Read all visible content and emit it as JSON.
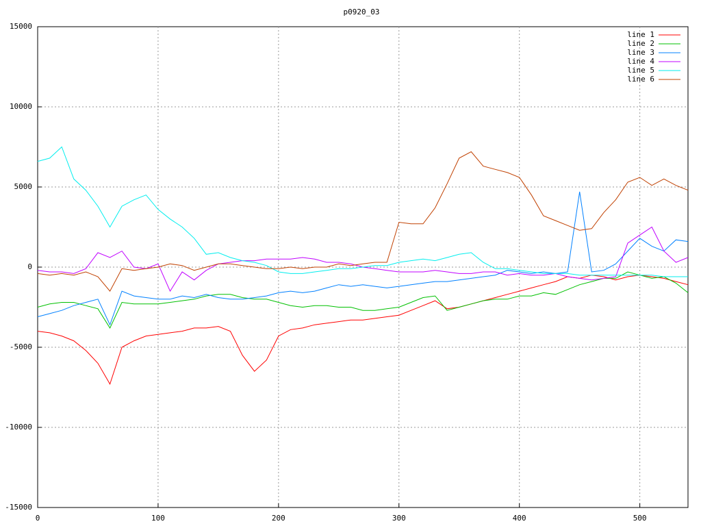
{
  "chart_data": {
    "type": "line",
    "title": "p0920_03",
    "x": [
      0,
      10,
      20,
      30,
      40,
      50,
      60,
      70,
      80,
      90,
      100,
      110,
      120,
      130,
      140,
      150,
      160,
      170,
      180,
      190,
      200,
      210,
      220,
      230,
      240,
      250,
      260,
      270,
      280,
      290,
      300,
      310,
      320,
      330,
      340,
      350,
      360,
      370,
      380,
      390,
      400,
      410,
      420,
      430,
      440,
      450,
      460,
      470,
      480,
      490,
      500,
      510,
      520,
      530,
      540
    ],
    "series": [
      {
        "name": "line 1",
        "color": "#ff0000",
        "values": [
          -4000,
          -4100,
          -4300,
          -4600,
          -5200,
          -6000,
          -7300,
          -5000,
          -4600,
          -4300,
          -4200,
          -4100,
          -4000,
          -3800,
          -3800,
          -3700,
          -4000,
          -5500,
          -6500,
          -5800,
          -4300,
          -3900,
          -3800,
          -3600,
          -3500,
          -3400,
          -3300,
          -3300,
          -3200,
          -3100,
          -3000,
          -2700,
          -2400,
          -2100,
          -2600,
          -2500,
          -2300,
          -2100,
          -1900,
          -1700,
          -1500,
          -1300,
          -1100,
          -900,
          -600,
          -700,
          -500,
          -600,
          -800,
          -600,
          -500,
          -600,
          -700,
          -900,
          -1100
        ]
      },
      {
        "name": "line 2",
        "color": "#00c000",
        "values": [
          -2500,
          -2300,
          -2200,
          -2200,
          -2400,
          -2600,
          -3800,
          -2200,
          -2300,
          -2300,
          -2300,
          -2200,
          -2100,
          -2000,
          -1800,
          -1700,
          -1700,
          -1900,
          -2000,
          -2000,
          -2200,
          -2400,
          -2500,
          -2400,
          -2400,
          -2500,
          -2500,
          -2700,
          -2700,
          -2600,
          -2500,
          -2200,
          -1900,
          -1800,
          -2700,
          -2500,
          -2300,
          -2100,
          -2000,
          -2000,
          -1800,
          -1800,
          -1600,
          -1700,
          -1400,
          -1100,
          -900,
          -700,
          -700,
          -300,
          -500,
          -700,
          -600,
          -1000,
          -1600
        ]
      },
      {
        "name": "line 3",
        "color": "#0080ff",
        "values": [
          -3100,
          -2900,
          -2700,
          -2400,
          -2200,
          -2000,
          -3600,
          -1500,
          -1800,
          -1900,
          -2000,
          -2000,
          -1800,
          -1900,
          -1700,
          -1900,
          -2000,
          -2000,
          -1900,
          -1800,
          -1600,
          -1500,
          -1600,
          -1500,
          -1300,
          -1100,
          -1200,
          -1100,
          -1200,
          -1300,
          -1200,
          -1100,
          -1000,
          -900,
          -900,
          -800,
          -700,
          -600,
          -500,
          -200,
          -300,
          -400,
          -300,
          -400,
          -300,
          4700,
          -300,
          -200,
          200,
          1000,
          1800,
          1300,
          1000,
          1700,
          1600
        ]
      },
      {
        "name": "line 4",
        "color": "#c000ff",
        "values": [
          -200,
          -300,
          -300,
          -400,
          -100,
          900,
          600,
          1000,
          0,
          -100,
          200,
          -1500,
          -300,
          -800,
          -200,
          200,
          300,
          400,
          400,
          500,
          500,
          500,
          600,
          500,
          300,
          300,
          200,
          0,
          -100,
          -200,
          -300,
          -300,
          -300,
          -200,
          -300,
          -400,
          -400,
          -300,
          -300,
          -500,
          -400,
          -500,
          -500,
          -400,
          -600,
          -700,
          -800,
          -700,
          -600,
          1500,
          2000,
          2500,
          1000,
          300,
          600
        ]
      },
      {
        "name": "line 5",
        "color": "#00eeee",
        "values": [
          6600,
          6800,
          7500,
          5500,
          4800,
          3800,
          2500,
          3800,
          4200,
          4500,
          3600,
          3000,
          2500,
          1800,
          800,
          900,
          600,
          400,
          300,
          100,
          -300,
          -400,
          -400,
          -300,
          -200,
          -100,
          -100,
          0,
          100,
          100,
          300,
          400,
          500,
          400,
          600,
          800,
          900,
          300,
          -100,
          -100,
          -200,
          -300,
          -400,
          -400,
          -400,
          -500,
          -500,
          -500,
          -500,
          -500,
          -500,
          -500,
          -600,
          -600,
          -600
        ]
      },
      {
        "name": "line 6",
        "color": "#c04000",
        "values": [
          -400,
          -500,
          -400,
          -500,
          -300,
          -600,
          -1500,
          -100,
          -200,
          -100,
          0,
          200,
          100,
          -200,
          0,
          200,
          200,
          100,
          0,
          -100,
          -100,
          0,
          -100,
          0,
          0,
          200,
          100,
          200,
          300,
          300,
          2800,
          2700,
          2700,
          3700,
          5200,
          6800,
          7200,
          6300,
          6100,
          5900,
          5600,
          4500,
          3200,
          2900,
          2600,
          2300,
          2400,
          3400,
          4200,
          5300,
          5600,
          5100,
          5500,
          5100,
          4800
        ]
      }
    ],
    "xlim": [
      0,
      540
    ],
    "ylim": [
      -15000,
      15000
    ],
    "xticks": [
      0,
      100,
      200,
      300,
      400,
      500
    ],
    "yticks": [
      -15000,
      -10000,
      -5000,
      0,
      5000,
      10000,
      15000
    ],
    "grid": true,
    "legend": "top-right"
  }
}
